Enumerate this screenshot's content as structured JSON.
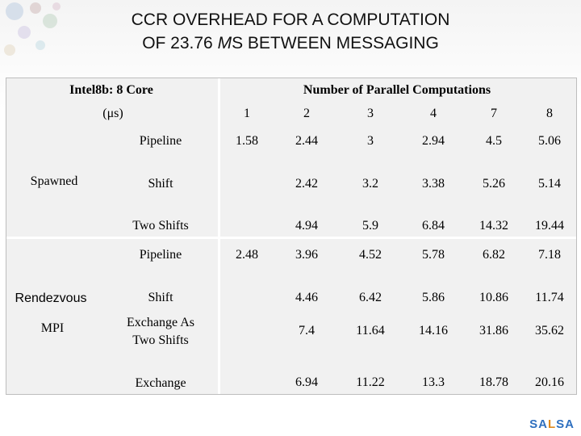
{
  "title": {
    "line1": "CCR OVERHEAD FOR A COMPUTATION",
    "line2_pre": "OF 23.76 ",
    "line2_mu": "M",
    "line2_post": "S BETWEEN MESSAGING"
  },
  "table": {
    "machine_label": "Intel8b: 8 Core",
    "unit_label": "(μs)",
    "header_label": "Number of Parallel Computations",
    "columns": [
      "1",
      "2",
      "3",
      "4",
      "7",
      "8"
    ],
    "groups": [
      {
        "label": "Spawned",
        "rows": [
          {
            "name": "Pipeline",
            "values": [
              "1.58",
              "2.44",
              "3",
              "2.94",
              "4.5",
              "5.06"
            ]
          },
          {
            "name": "Shift",
            "values": [
              "",
              "2.42",
              "3.2",
              "3.38",
              "5.26",
              "5.14"
            ]
          },
          {
            "name": "Two Shifts",
            "values": [
              "",
              "4.94",
              "5.9",
              "6.84",
              "14.32",
              "19.44"
            ]
          }
        ]
      },
      {
        "label_line1": "Rendezvous",
        "label_line2": "MPI",
        "rows": [
          {
            "name": "Pipeline",
            "values": [
              "2.48",
              "3.96",
              "4.52",
              "5.78",
              "6.82",
              "7.18"
            ]
          },
          {
            "name": "Shift",
            "values": [
              "",
              "4.46",
              "6.42",
              "5.86",
              "10.86",
              "11.74"
            ]
          },
          {
            "name_line1": "Exchange As",
            "name_line2": "Two Shifts",
            "values": [
              "",
              "7.4",
              "11.64",
              "14.16",
              "31.86",
              "35.62"
            ]
          },
          {
            "name": "Exchange",
            "values": [
              "",
              "6.94",
              "11.22",
              "13.3",
              "18.78",
              "20.16"
            ]
          }
        ]
      }
    ]
  },
  "logo": {
    "part1": "SA",
    "part2": "L",
    "part3": "SA"
  }
}
